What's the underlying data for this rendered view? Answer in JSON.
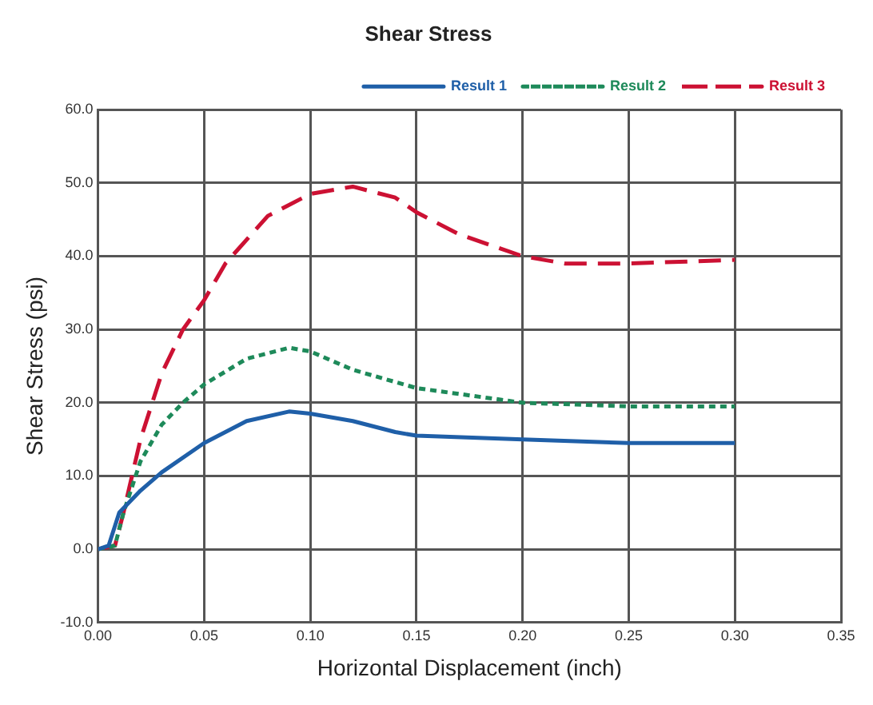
{
  "chart_data": {
    "type": "line",
    "title": "Shear Stress",
    "xlabel": "Horizontal Displacement (inch)",
    "ylabel": "Shear Stress (psi)",
    "xlim": [
      0,
      0.35
    ],
    "xticks": [
      {
        "value": 0,
        "label": "0.00"
      },
      {
        "value": 0.05,
        "label": "0.05"
      },
      {
        "value": 0.1,
        "label": "0.10"
      },
      {
        "value": 0.15,
        "label": "0.15"
      },
      {
        "value": 0.2,
        "label": "0.20"
      },
      {
        "value": 0.25,
        "label": "0.25"
      },
      {
        "value": 0.3,
        "label": "0.30"
      },
      {
        "value": 0.35,
        "label": "0.35"
      }
    ],
    "ylim": [
      -10,
      60
    ],
    "yticks": [
      {
        "value": -10,
        "label": "-10.0"
      },
      {
        "value": 0,
        "label": "0.0"
      },
      {
        "value": 10,
        "label": "10.0"
      },
      {
        "value": 20,
        "label": "20.0"
      },
      {
        "value": 30,
        "label": "30.0"
      },
      {
        "value": 40,
        "label": "40.0"
      },
      {
        "value": 50,
        "label": "50.0"
      },
      {
        "value": 60,
        "label": "60.0"
      }
    ],
    "grid": true,
    "legend": "top right",
    "marker": "none",
    "series": [
      {
        "name": "Result 1",
        "color": "#1f5fa8",
        "line_style": "solid",
        "x": [
          0,
          0.005,
          0.01,
          0.02,
          0.03,
          0.05,
          0.07,
          0.09,
          0.1,
          0.12,
          0.14,
          0.15,
          0.2,
          0.25,
          0.3
        ],
        "values": [
          0,
          0.5,
          5,
          8,
          10.5,
          14.5,
          17.5,
          18.8,
          18.5,
          17.5,
          16,
          15.5,
          15,
          14.5,
          14.5
        ]
      },
      {
        "name": "Result 2",
        "color": "#1e8a5a",
        "line_style": "dotted",
        "x": [
          0,
          0.008,
          0.012,
          0.02,
          0.03,
          0.04,
          0.05,
          0.07,
          0.09,
          0.1,
          0.12,
          0.15,
          0.2,
          0.25,
          0.3
        ],
        "values": [
          0,
          0.5,
          5,
          12,
          17,
          20,
          22.5,
          26,
          27.5,
          27,
          24.5,
          22,
          20,
          19.5,
          19.5
        ]
      },
      {
        "name": "Result 3",
        "color": "#cc1133",
        "line_style": "dashed",
        "x": [
          0,
          0.008,
          0.012,
          0.02,
          0.03,
          0.04,
          0.05,
          0.06,
          0.08,
          0.1,
          0.12,
          0.14,
          0.15,
          0.17,
          0.2,
          0.22,
          0.25,
          0.3
        ],
        "values": [
          0,
          0.5,
          5,
          15,
          24,
          30,
          34,
          39,
          45.5,
          48.5,
          49.5,
          48,
          46,
          43,
          40,
          39,
          39,
          39.5
        ]
      }
    ]
  }
}
